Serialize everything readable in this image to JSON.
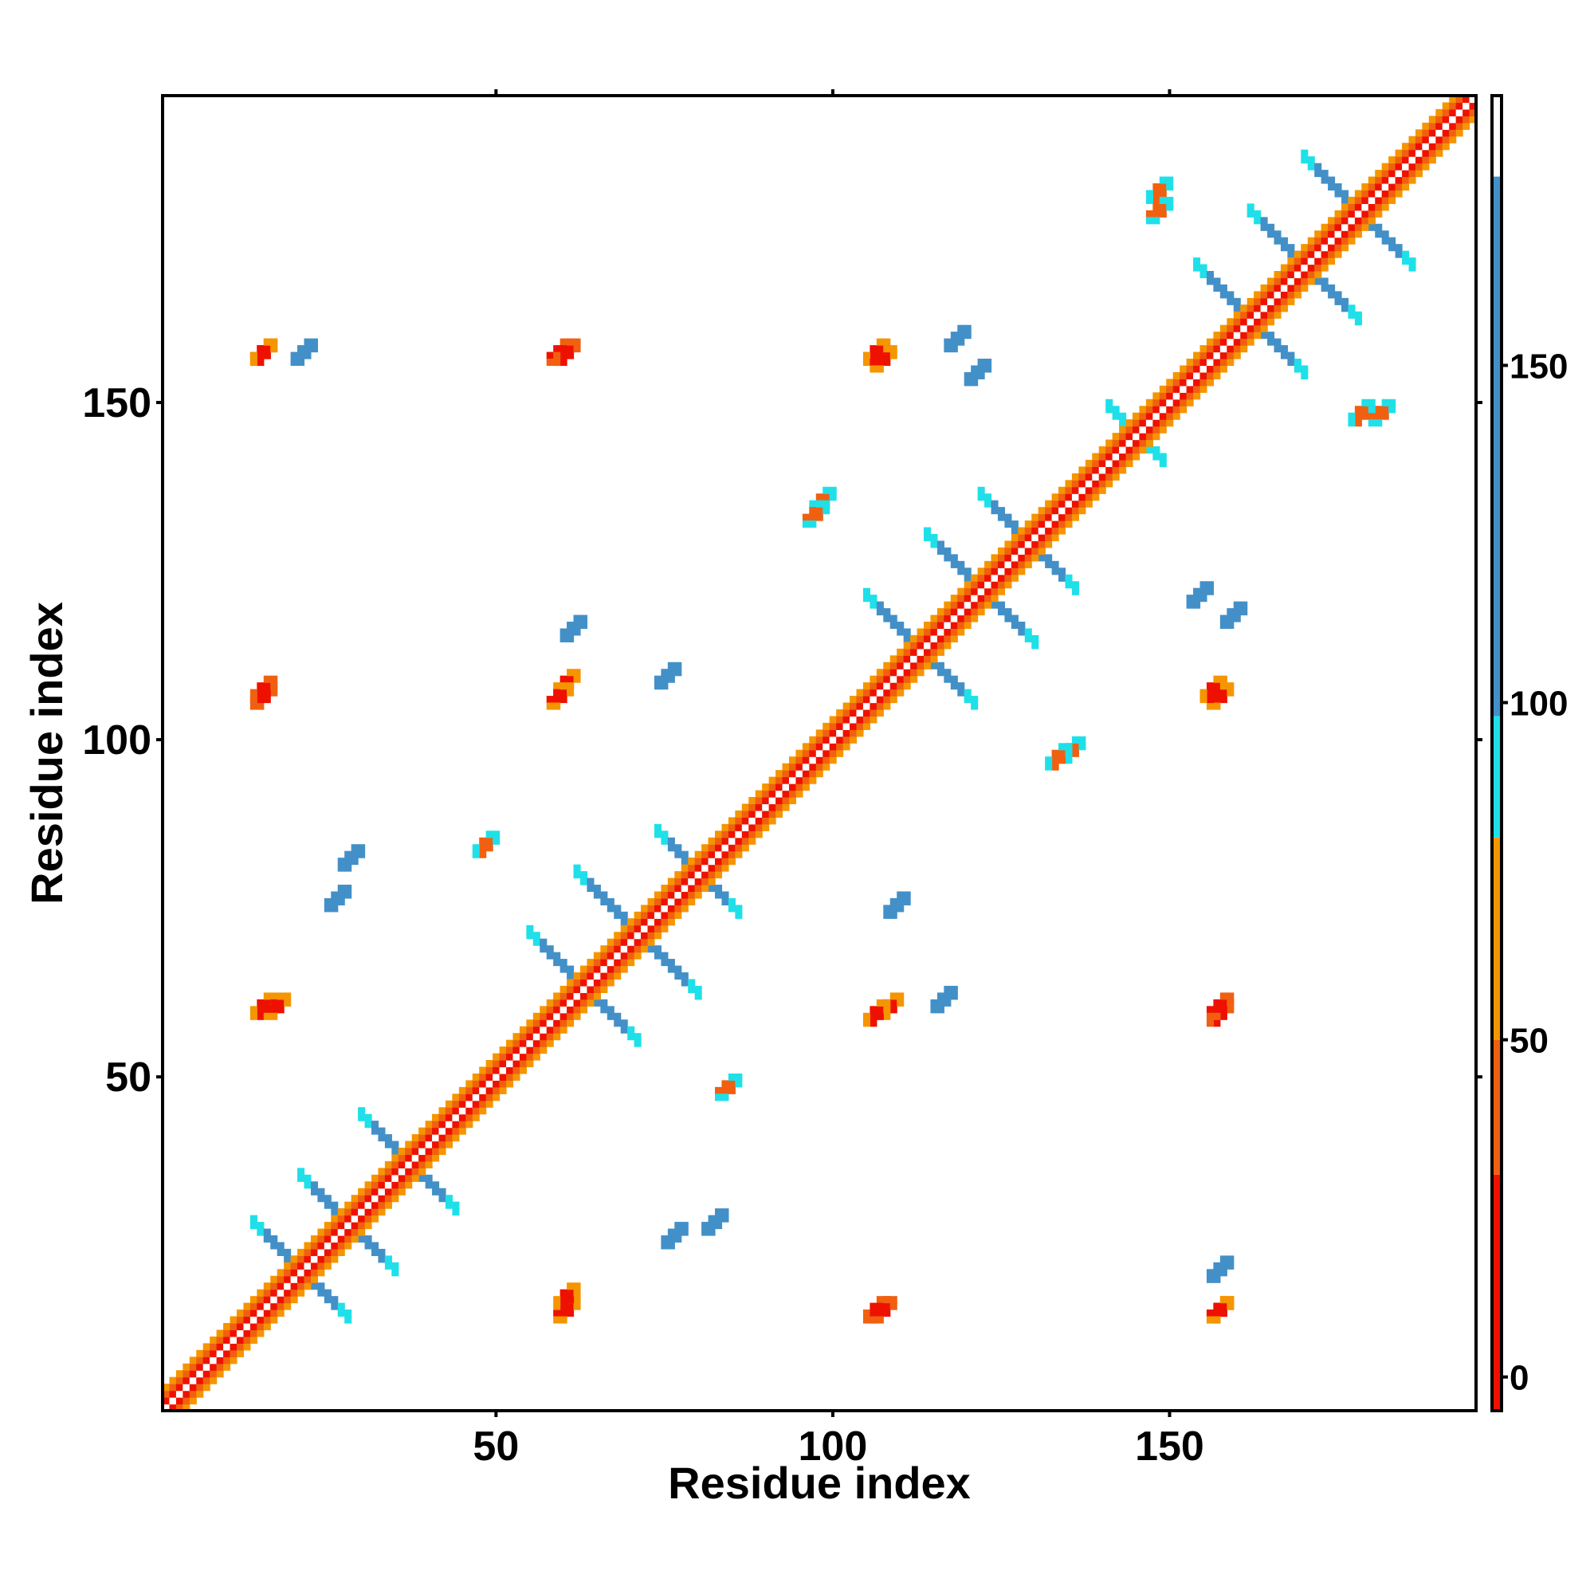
{
  "chart_data": {
    "type": "heatmap",
    "title": "",
    "xlabel": "Residue index",
    "ylabel": "Residue index",
    "xlim": [
      1,
      195
    ],
    "ylim": [
      1,
      195
    ],
    "x_ticks": [
      50,
      100,
      150
    ],
    "y_ticks": [
      50,
      100,
      150
    ],
    "colorbar": {
      "range": [
        -5,
        190
      ],
      "ticks": [
        0,
        50,
        100,
        150
      ],
      "bands": [
        {
          "from": -5,
          "to": 30,
          "color": "#ee1100"
        },
        {
          "from": 30,
          "to": 50,
          "color": "#f06010"
        },
        {
          "from": 50,
          "to": 80,
          "color": "#f59500"
        },
        {
          "from": 80,
          "to": 98,
          "color": "#1fe0e8"
        },
        {
          "from": 98,
          "to": 178,
          "color": "#4390c8"
        },
        {
          "from": 178,
          "to": 190,
          "color": "#ffffff"
        }
      ]
    },
    "diagonal": {
      "from": 1,
      "to": 195,
      "value": 10
    },
    "cross_motifs": [
      {
        "center": 21,
        "half_length": 7,
        "value": 130
      },
      {
        "center": 28,
        "half_length": 7,
        "value": 130
      },
      {
        "center": 37,
        "half_length": 7,
        "value": 130
      },
      {
        "center": 63,
        "half_length": 8,
        "value": 130
      },
      {
        "center": 71,
        "half_length": 9,
        "value": 130
      },
      {
        "center": 80,
        "half_length": 6,
        "value": 130
      },
      {
        "center": 113,
        "half_length": 8,
        "value": 130
      },
      {
        "center": 122,
        "half_length": 8,
        "value": 130
      },
      {
        "center": 129,
        "half_length": 7,
        "value": 130
      },
      {
        "center": 145,
        "half_length": 4,
        "value": 95
      },
      {
        "center": 162,
        "half_length": 8,
        "value": 130
      },
      {
        "center": 170,
        "half_length": 8,
        "value": 130
      },
      {
        "center": 178,
        "half_length": 8,
        "value": 130
      }
    ],
    "contact_clusters": [
      {
        "x": 60,
        "y": 15,
        "value": 10
      },
      {
        "x": 108,
        "y": 60,
        "value": 10
      },
      {
        "x": 59,
        "y": 106,
        "value": 10
      },
      {
        "x": 157,
        "y": 106,
        "value": 10
      },
      {
        "x": 17,
        "y": 60,
        "value": 10
      },
      {
        "x": 15,
        "y": 157,
        "value": 10
      },
      {
        "x": 107,
        "y": 156,
        "value": 10
      },
      {
        "x": 157,
        "y": 15,
        "value": 10
      },
      {
        "x": 59,
        "y": 157,
        "value": 5
      },
      {
        "x": 157,
        "y": 60,
        "value": 5
      },
      {
        "x": 15,
        "y": 106,
        "value": 5
      },
      {
        "x": 107,
        "y": 15,
        "value": 5
      },
      {
        "x": 181,
        "y": 148,
        "value": 45
      },
      {
        "x": 135,
        "y": 98,
        "value": 45
      },
      {
        "x": 97,
        "y": 133,
        "value": 45
      },
      {
        "x": 148,
        "y": 178,
        "value": 45
      },
      {
        "x": 84,
        "y": 48,
        "value": 45
      },
      {
        "x": 28,
        "y": 82,
        "value": 130
      },
      {
        "x": 76,
        "y": 26,
        "value": 130
      },
      {
        "x": 116,
        "y": 61,
        "value": 130
      },
      {
        "x": 121,
        "y": 154,
        "value": 130
      },
      {
        "x": 109,
        "y": 75,
        "value": 110
      },
      {
        "x": 159,
        "y": 118,
        "value": 110
      },
      {
        "x": 21,
        "y": 157,
        "value": 130
      }
    ]
  }
}
